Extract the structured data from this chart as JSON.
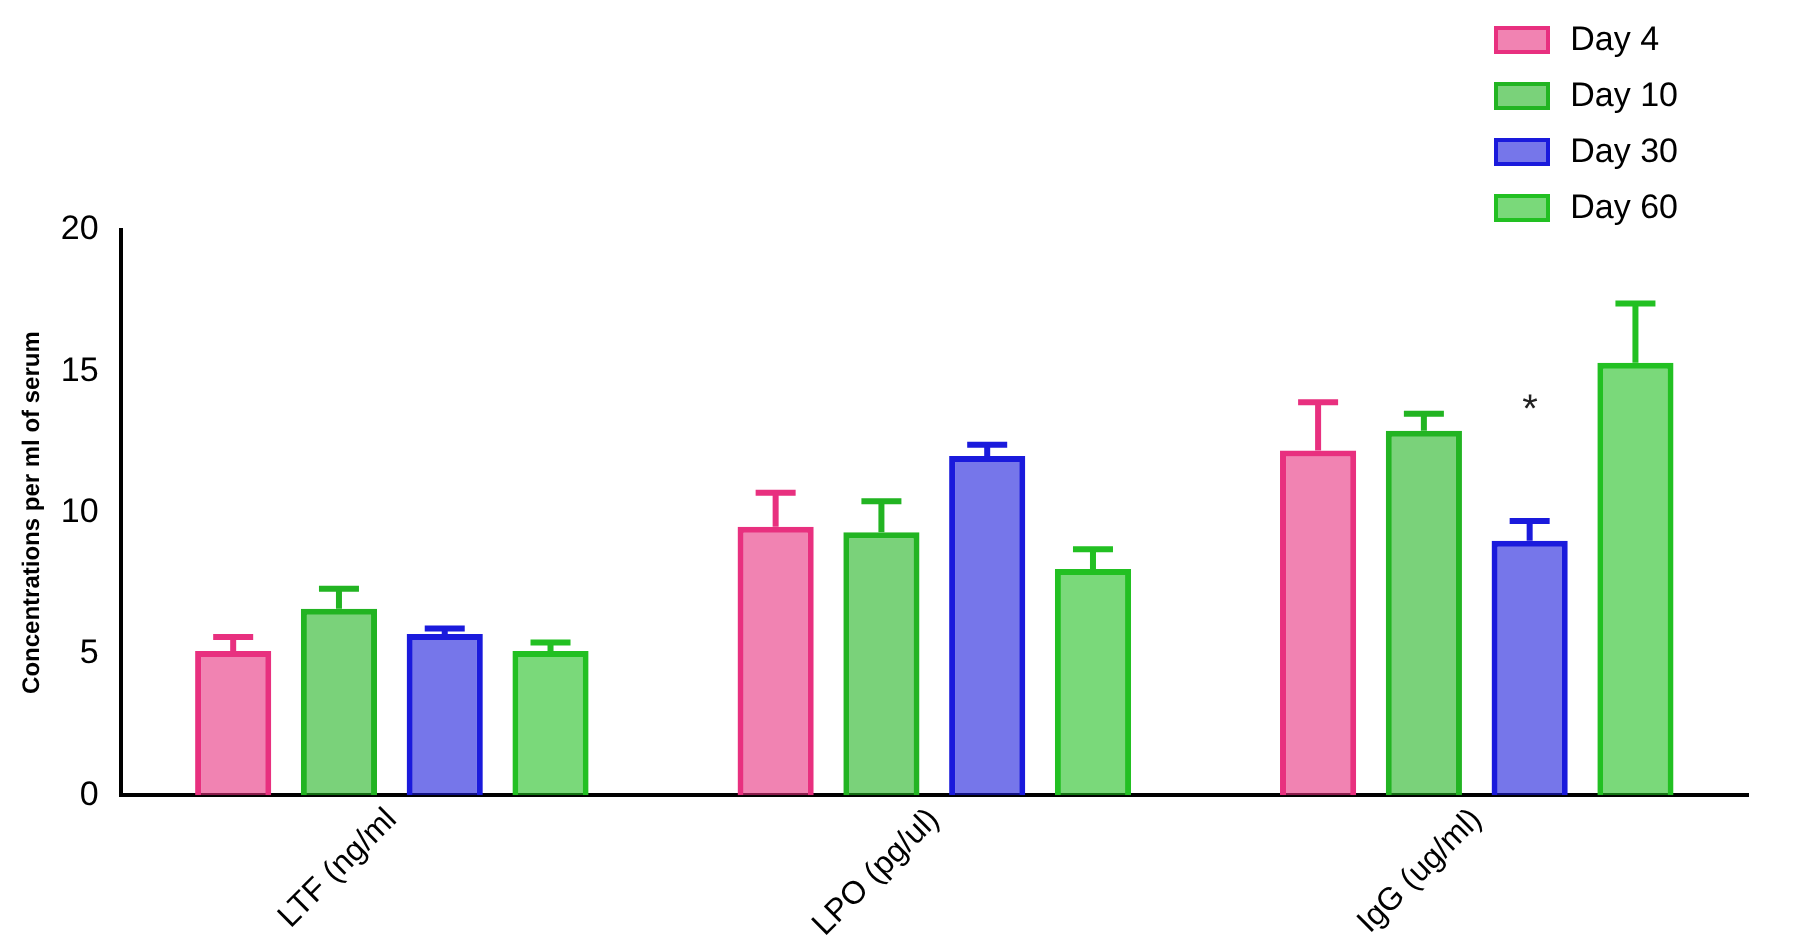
{
  "chart_data": {
    "type": "bar",
    "ylabel": "Concentrations per ml of serum",
    "categories": [
      "LTF (ng/ml",
      "LPO (pg/ul)",
      "IgG (ug/ml)"
    ],
    "series": [
      {
        "name": "Day 4",
        "color": "#e8307f",
        "values": [
          5.1,
          9.5,
          12.2
        ],
        "errors": [
          0.5,
          1.2,
          1.7
        ]
      },
      {
        "name": "Day 10",
        "color": "#22b422",
        "values": [
          6.6,
          9.3,
          12.9
        ],
        "errors": [
          0.7,
          1.1,
          0.6
        ]
      },
      {
        "name": "Day 30",
        "color": "#1a1adc",
        "values": [
          5.7,
          12.0,
          9.0
        ],
        "errors": [
          0.2,
          0.4,
          0.7
        ]
      },
      {
        "name": "Day 60",
        "color": "#22c022",
        "values": [
          5.1,
          8.0,
          15.3
        ],
        "errors": [
          0.3,
          0.7,
          2.1
        ]
      }
    ],
    "ylim": [
      0,
      20
    ],
    "yticks": [
      0,
      5,
      10,
      15,
      20
    ],
    "grid": false,
    "legend": "top right",
    "annotations": [
      "*"
    ]
  }
}
